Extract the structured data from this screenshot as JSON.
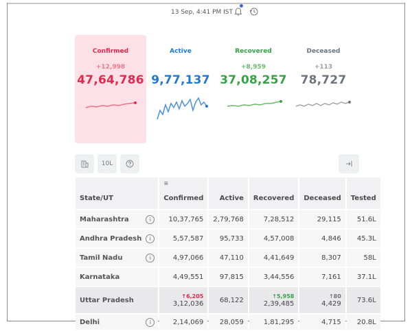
{
  "header": {
    "timestamp": "13 Sep, 4:41 PM IST",
    "icons": [
      "bell-icon",
      "history-icon"
    ]
  },
  "cards": [
    {
      "label": "Confirmed",
      "delta": "+12,998",
      "value": "47,64,786",
      "color": "#e2284f"
    },
    {
      "label": "Active",
      "delta": "",
      "value": "9,77,137",
      "color": "#1e78d6"
    },
    {
      "label": "Recovered",
      "delta": "+8,959",
      "value": "37,08,257",
      "color": "#35a244"
    },
    {
      "label": "Deceased",
      "delta": "+113",
      "value": "78,727",
      "color": "#6c757d"
    }
  ],
  "toolbar": {
    "per_million_label": "10L",
    "icons": [
      "building-icon",
      "help-icon",
      "expand-icon"
    ]
  },
  "table": {
    "headers": [
      "State/UT",
      "Confirmed",
      "Active",
      "Recovered",
      "Deceased",
      "Tested"
    ],
    "rows": [
      {
        "state": "Maharashtra",
        "confirmed": "10,37,765",
        "active": "2,79,768",
        "recovered": "7,28,512",
        "deceased": "29,115",
        "tested": "51.6L"
      },
      {
        "state": "Andhra Pradesh",
        "confirmed": "5,57,587",
        "active": "95,733",
        "recovered": "4,57,008",
        "deceased": "4,846",
        "tested": "45.3L"
      },
      {
        "state": "Tamil Nadu",
        "confirmed": "4,97,066",
        "active": "47,110",
        "recovered": "4,41,649",
        "deceased": "8,307",
        "tested": "58L"
      },
      {
        "state": "Karnataka",
        "confirmed": "4,49,551",
        "active": "97,815",
        "recovered": "3,44,556",
        "deceased": "7,161",
        "tested": "37.1L"
      },
      {
        "state": "Uttar Pradesh",
        "confirmed_delta": "↑6,205",
        "confirmed": "3,12,036",
        "active": "68,122",
        "recovered_delta": "↑5,958",
        "recovered": "2,39,485",
        "deceased_delta": "↑80",
        "deceased": "4,429",
        "tested": "73.6L"
      },
      {
        "state": "Delhi",
        "confirmed": "2,14,069",
        "active": "28,059",
        "recovered": "1,81,295",
        "deceased": "4,715",
        "tested": "20.8L"
      }
    ]
  }
}
